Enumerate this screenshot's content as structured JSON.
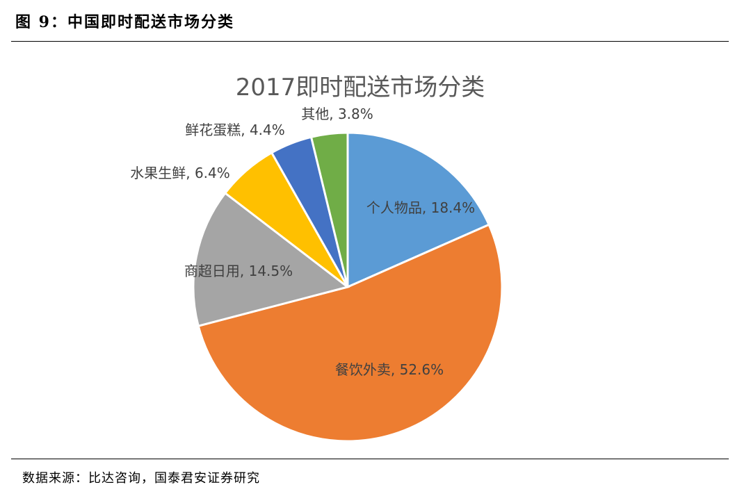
{
  "header": {
    "caption": "图 9：中国即时配送市场分类"
  },
  "footer": {
    "source": "数据来源：比达咨询，国泰君安证券研究"
  },
  "chart_data": {
    "type": "pie",
    "title": "2017即时配送市场分类",
    "slices": [
      {
        "label": "个人物品, 18.4%",
        "value": 18.4,
        "color": "#5B9BD5"
      },
      {
        "label": "餐饮外卖, 52.6%",
        "value": 52.6,
        "color": "#ED7D31"
      },
      {
        "label": "商超日用, 14.5%",
        "value": 14.5,
        "color": "#A5A5A5"
      },
      {
        "label": "水果生鲜, 6.4%",
        "value": 6.4,
        "color": "#FFC000"
      },
      {
        "label": "鲜花蛋糕, 4.4%",
        "value": 4.4,
        "color": "#4472C4"
      },
      {
        "label": "其他, 3.8%",
        "value": 3.8,
        "color": "#70AD47"
      }
    ]
  }
}
